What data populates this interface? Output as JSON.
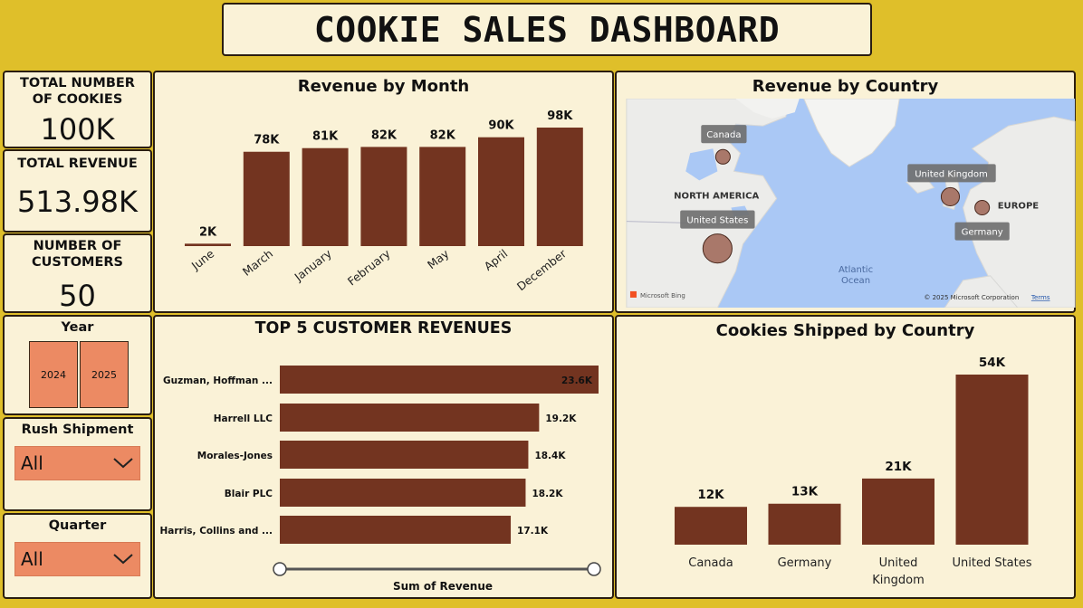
{
  "dashboard_title": "COOKIE SALES DASHBOARD",
  "kpis": {
    "cookies_label": "TOTAL NUMBER OF COOKIES",
    "cookies_value": "100K",
    "revenue_label": "TOTAL REVENUE",
    "revenue_value": "513.98K",
    "customers_label": "NUMBER OF CUSTOMERS",
    "customers_value": "50"
  },
  "slicers": {
    "year_title": "Year",
    "years": [
      "2024",
      "2025"
    ],
    "rush_title": "Rush Shipment",
    "rush_value": "All",
    "quarter_title": "Quarter",
    "quarter_value": "All"
  },
  "colors": {
    "bar": "#733420",
    "background": "#dfbf2a",
    "card": "#faf2d7",
    "slicer": "#ec8a63",
    "map_water": "#aac8f5"
  },
  "chart_data": [
    {
      "type": "bar",
      "title": "Revenue by Month",
      "categories": [
        "June",
        "March",
        "January",
        "February",
        "May",
        "April",
        "December"
      ],
      "values": [
        2,
        78,
        81,
        82,
        82,
        90,
        98
      ],
      "data_labels": [
        "2K",
        "78K",
        "81K",
        "82K",
        "82K",
        "90K",
        "98K"
      ],
      "unit": "K"
    },
    {
      "type": "bar",
      "orientation": "horizontal",
      "title": "TOP 5 CUSTOMER REVENUES",
      "categories": [
        "Guzman, Hoffman ...",
        "Harrell LLC",
        "Morales-Jones",
        "Blair PLC",
        "Harris, Collins and ..."
      ],
      "values": [
        23.6,
        19.2,
        18.4,
        18.2,
        17.1
      ],
      "data_labels": [
        "23.6K",
        "19.2K",
        "18.4K",
        "18.2K",
        "17.1K"
      ],
      "xlabel": "Sum of Revenue"
    },
    {
      "type": "bar",
      "title": "Cookies Shipped by Country",
      "categories": [
        "Canada",
        "Germany",
        "United Kingdom",
        "United States"
      ],
      "values": [
        12,
        13,
        21,
        54
      ],
      "data_labels": [
        "12K",
        "13K",
        "21K",
        "54K"
      ]
    }
  ],
  "map": {
    "title": "Revenue by Country",
    "region_labels": [
      "NORTH AMERICA",
      "EUROPE"
    ],
    "ocean_label": "Atlantic Ocean",
    "points": [
      "Canada",
      "United States",
      "United Kingdom",
      "Germany"
    ],
    "attribution": "© 2025 Microsoft Corporation",
    "terms": "Terms",
    "logo": "Microsoft Bing"
  }
}
